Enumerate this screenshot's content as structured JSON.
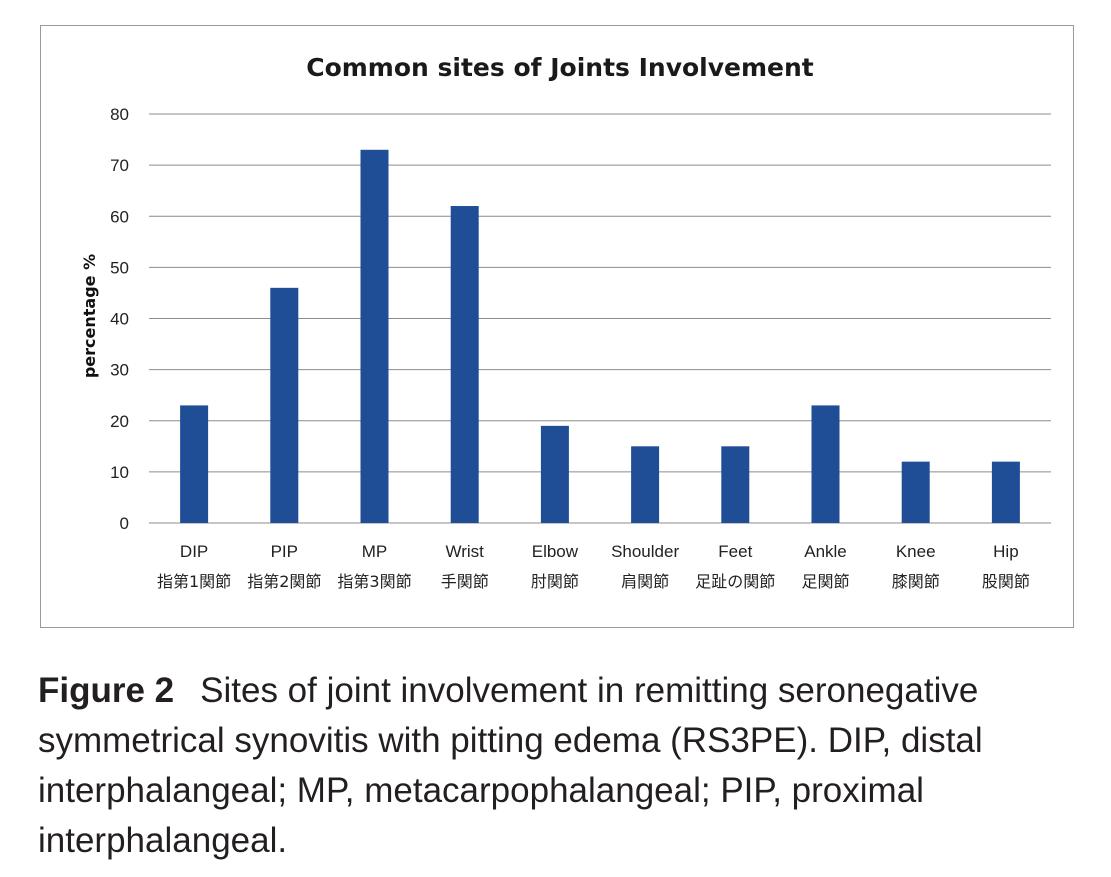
{
  "chart_data": {
    "type": "bar",
    "title": "Common sites of Joints Involvement",
    "ylabel": "percentage %",
    "xlabel": "",
    "ylim": [
      0,
      80
    ],
    "yticks": [
      0,
      10,
      20,
      30,
      40,
      50,
      60,
      70,
      80
    ],
    "grid": true,
    "legend": "none",
    "bar_color": "#1f4e96",
    "categories": [
      "DIP",
      "PIP",
      "MP",
      "Wrist",
      "Elbow",
      "Shoulder",
      "Feet",
      "Ankle",
      "Knee",
      "Hip"
    ],
    "category_sublabels": [
      "指第1関節",
      "指第2関節",
      "指第3関節",
      "手関節",
      "肘関節",
      "肩関節",
      "足趾の関節",
      "足関節",
      "膝関節",
      "股関節"
    ],
    "values": [
      23,
      46,
      73,
      62,
      19,
      15,
      15,
      23,
      12,
      12
    ]
  },
  "caption": {
    "figure_number": "Figure 2",
    "text": "Sites of joint involvement in remitting seronegative symmetrical synovitis with pitting edema (RS3PE). DIP, distal interphalangeal; MP, metacarpophalangeal; PIP, proximal interphalangeal."
  }
}
